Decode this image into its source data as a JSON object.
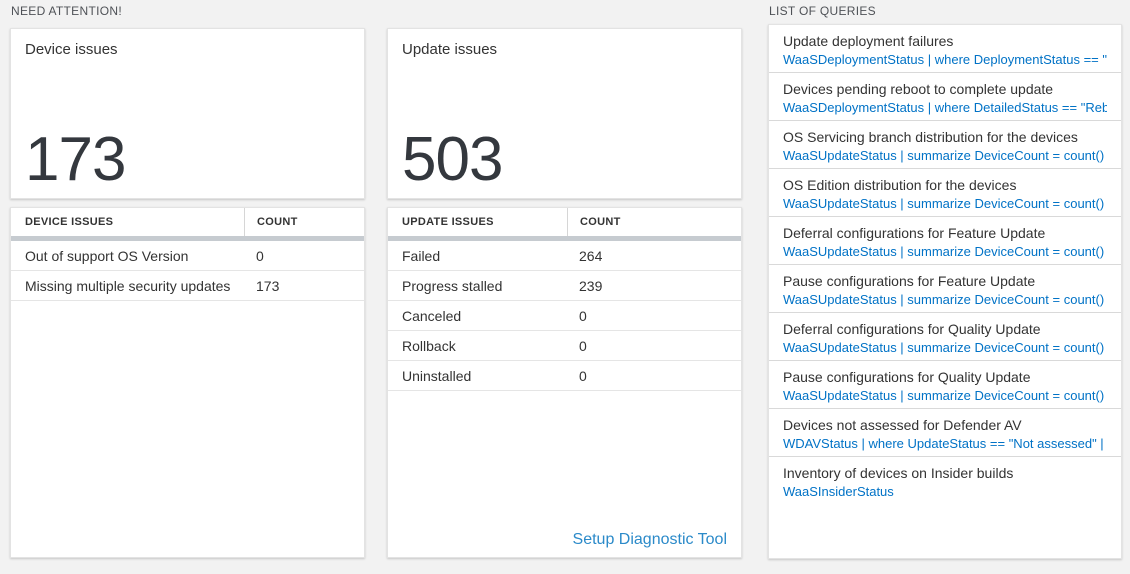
{
  "colors": {
    "page_background": "#f2f2f2",
    "query_link_blue": "#0072c6",
    "diagnostic_link_blue": "#2b8ac9",
    "table_header_bar_gray": "#c6cbd0",
    "big_number_color": "#34383e"
  },
  "need_attention": {
    "section_title": "NEED ATTENTION!",
    "cards": [
      {
        "title": "Device issues",
        "count": "173",
        "table": {
          "headers": [
            "DEVICE ISSUES",
            "COUNT"
          ],
          "rows": [
            [
              "Out of support OS Version",
              "0"
            ],
            [
              "Missing multiple security updates",
              "173"
            ]
          ]
        }
      },
      {
        "title": "Update issues",
        "count": "503",
        "table": {
          "headers": [
            "UPDATE ISSUES",
            "COUNT"
          ],
          "rows": [
            [
              "Failed",
              "264"
            ],
            [
              "Progress stalled",
              "239"
            ],
            [
              "Canceled",
              "0"
            ],
            [
              "Rollback",
              "0"
            ],
            [
              "Uninstalled",
              "0"
            ]
          ]
        },
        "link_label": "Setup Diagnostic Tool"
      }
    ]
  },
  "queries": {
    "section_title": "LIST OF QUERIES",
    "items": [
      {
        "title": "Update deployment failures",
        "query": "WaaSDeploymentStatus | where DeploymentStatus == \"Failed\" |..."
      },
      {
        "title": "Devices pending reboot to complete update",
        "query": "WaaSDeploymentStatus | where DetailedStatus == \"Reboot pend..."
      },
      {
        "title": "OS Servicing branch distribution for the devices",
        "query": "WaaSUpdateStatus | summarize DeviceCount = count() by OSSer..."
      },
      {
        "title": "OS Edition distribution for the devices",
        "query": "WaaSUpdateStatus | summarize DeviceCount = count() by OSEdit..."
      },
      {
        "title": "Deferral configurations for Feature Update",
        "query": "WaaSUpdateStatus | summarize DeviceCount = count() by Featur..."
      },
      {
        "title": "Pause configurations for Feature Update",
        "query": "WaaSUpdateStatus | summarize DeviceCount = count() by Featur..."
      },
      {
        "title": "Deferral configurations for Quality Update",
        "query": "WaaSUpdateStatus | summarize DeviceCount = count() by Qualit..."
      },
      {
        "title": "Pause configurations for Quality Update",
        "query": "WaaSUpdateStatus | summarize DeviceCount = count() by Qualit..."
      },
      {
        "title": "Devices not assessed for Defender AV",
        "query": "WDAVStatus | where UpdateStatus == \"Not assessed\" | render ta..."
      },
      {
        "title": "Inventory of devices on Insider builds",
        "query": "WaaSInsiderStatus"
      }
    ]
  }
}
